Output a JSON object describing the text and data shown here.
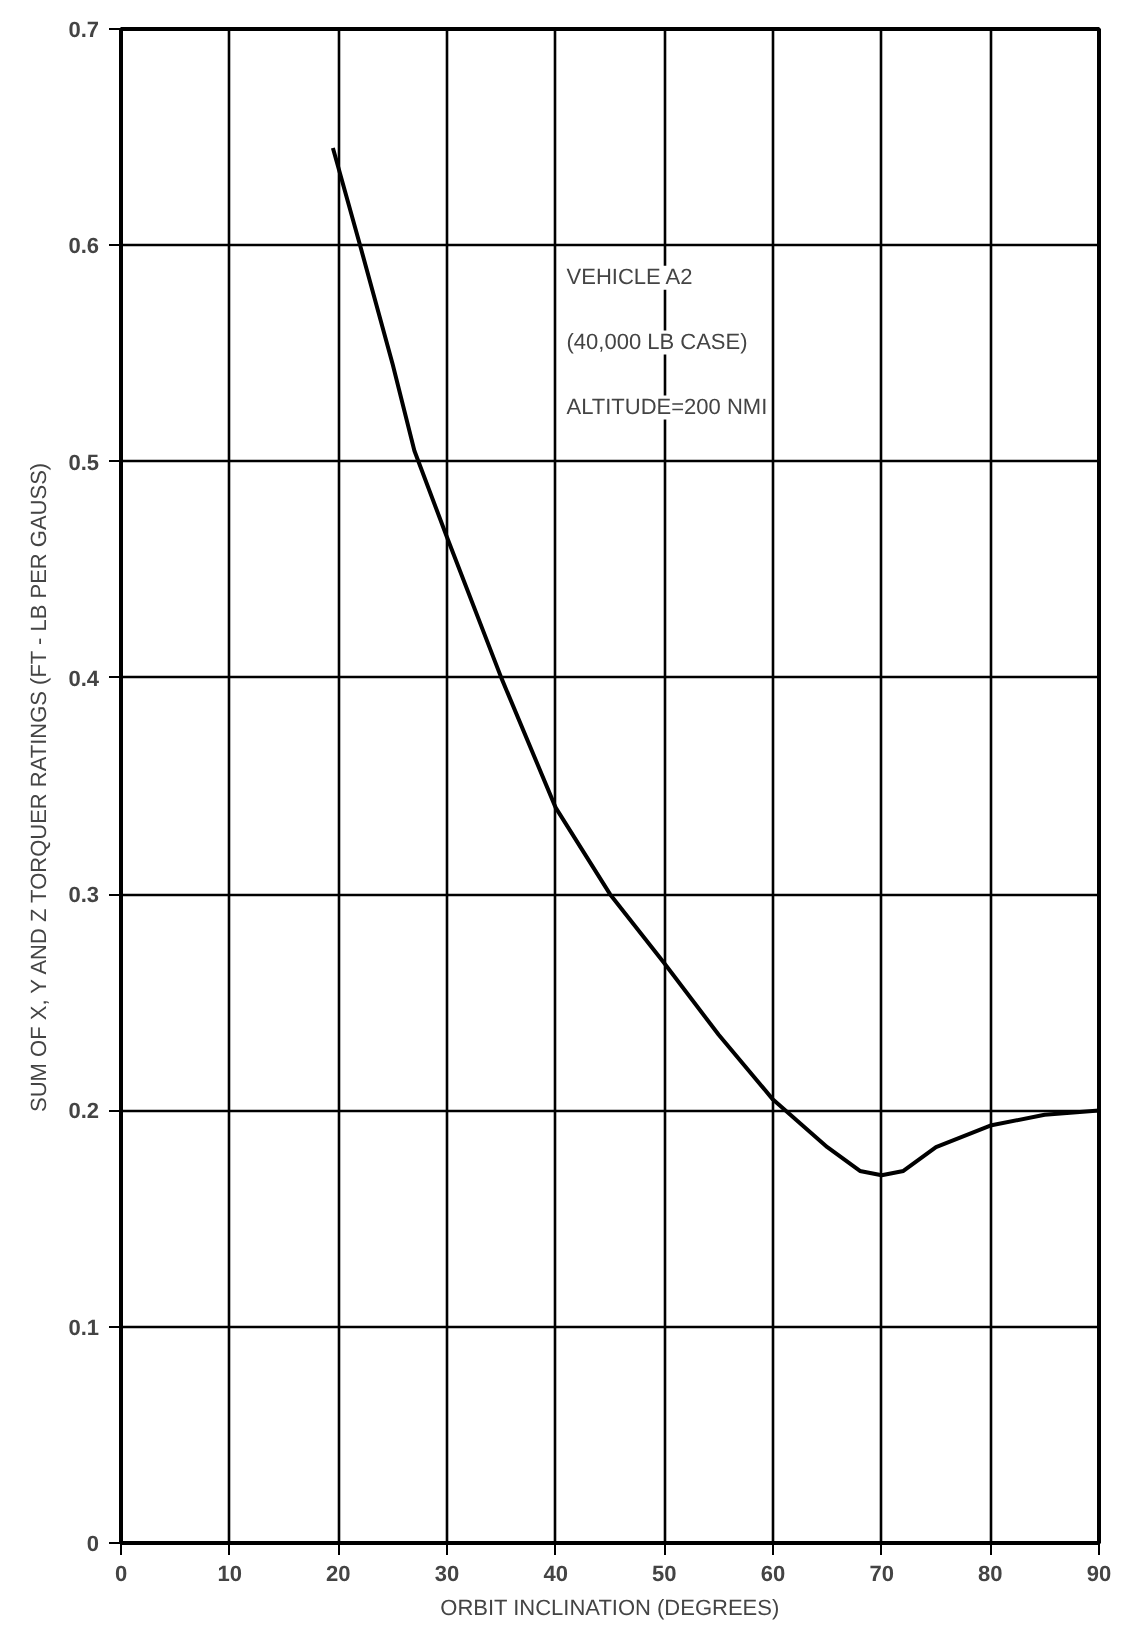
{
  "chart_data": {
    "type": "line",
    "xlabel": "ORBIT INCLINATION (DEGREES)",
    "ylabel": "SUM OF X, Y AND Z TORQUER RATINGS (FT - LB PER GAUSS)",
    "x": [
      19.5,
      22,
      25,
      27,
      30,
      35,
      40,
      45,
      50,
      55,
      60,
      65,
      68,
      70,
      72,
      75,
      80,
      85,
      90
    ],
    "series": [
      {
        "color": "#000000",
        "values": [
          0.645,
          0.6,
          0.545,
          0.505,
          0.465,
          0.4,
          0.34,
          0.3,
          0.268,
          0.235,
          0.205,
          0.183,
          0.172,
          0.17,
          0.172,
          0.183,
          0.193,
          0.198,
          0.2
        ]
      }
    ],
    "xlim": [
      0,
      90
    ],
    "ylim": [
      0,
      0.7
    ],
    "xticks": [
      0,
      10,
      20,
      30,
      40,
      50,
      60,
      70,
      80,
      90
    ],
    "yticks": [
      0,
      0.1,
      0.2,
      0.3,
      0.4,
      0.5,
      0.6,
      0.7
    ],
    "grid": true,
    "line_style": "solid",
    "annotations": [
      "VEHICLE A2",
      "(40,000 LB CASE)",
      "ALTITUDE=200 NMI"
    ]
  }
}
